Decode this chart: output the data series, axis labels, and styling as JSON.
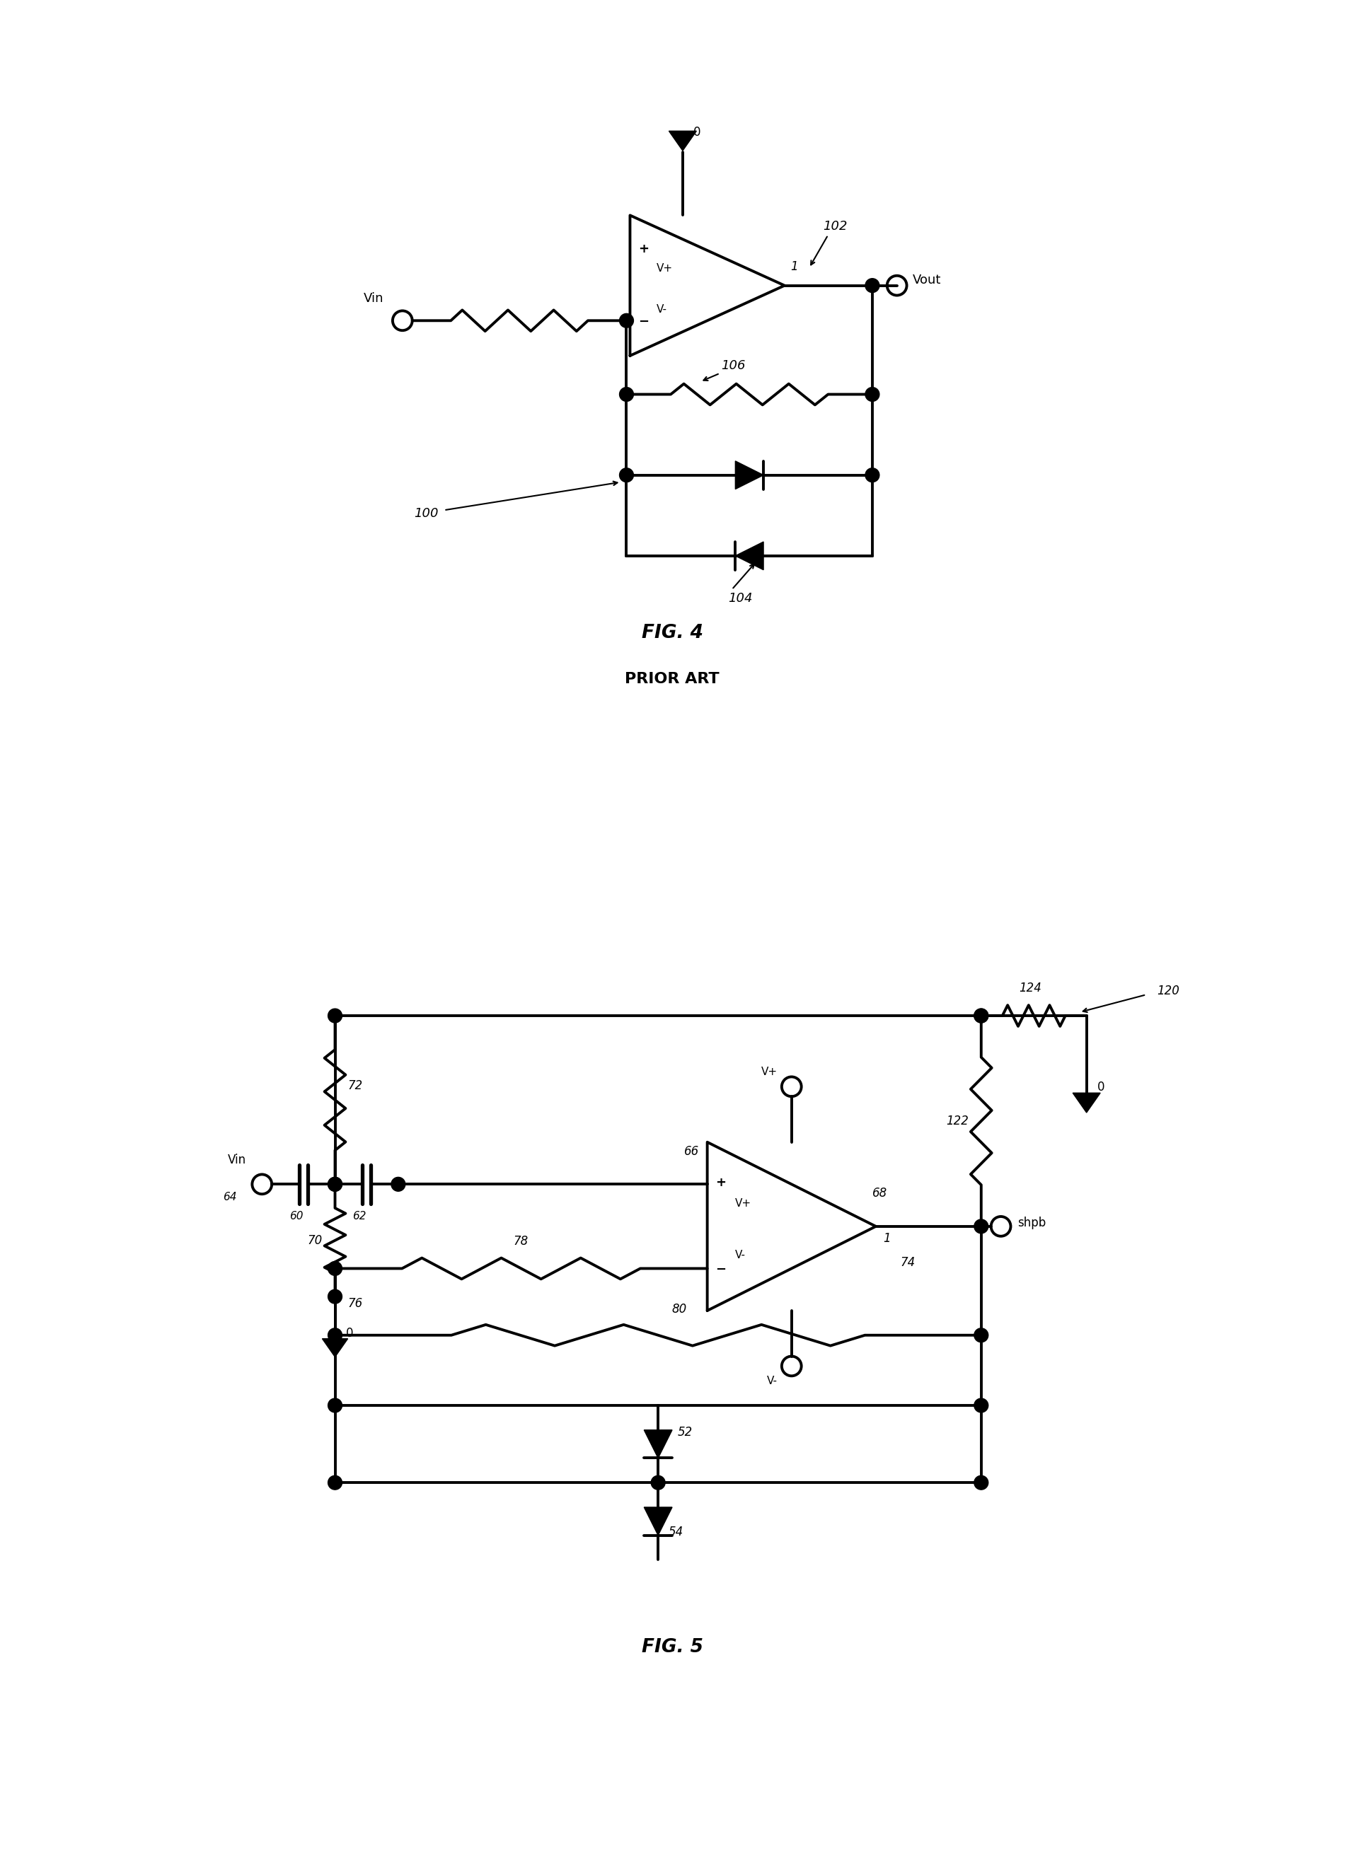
{
  "bg_color": "#ffffff",
  "lw": 2.8,
  "fig4_title": "FIG. 4",
  "fig4_subtitle": "PRIOR ART",
  "fig5_title": "FIG. 5"
}
